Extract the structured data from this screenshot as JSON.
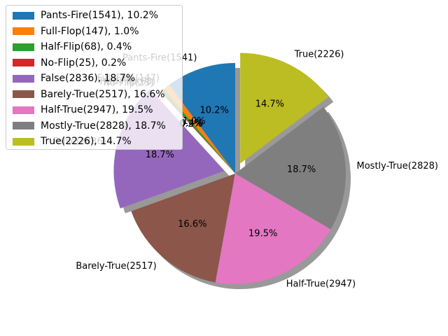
{
  "chart_data": {
    "type": "pie",
    "series": [
      {
        "label": "Pants-Fire(1541)",
        "count": 1541,
        "pct_label": "10.2%",
        "legend": "Pants-Fire(1541), 10.2%",
        "color": "#1f77b4",
        "exploded": false
      },
      {
        "label": "Full-Flop(147)",
        "count": 147,
        "pct_label": "1.0%",
        "legend": "Full-Flop(147), 1.0%",
        "color": "#ff7f0e",
        "exploded": false
      },
      {
        "label": "Half-Flip(68)",
        "count": 68,
        "pct_label": "0.4%",
        "legend": "Half-Flip(68), 0.4%",
        "color": "#2ca02c",
        "exploded": false
      },
      {
        "label": "No-Flip(25)",
        "count": 25,
        "pct_label": "0.2%",
        "legend": "No-Flip(25), 0.2%",
        "color": "#d62728",
        "exploded": false
      },
      {
        "label": "False(2836)",
        "count": 2836,
        "pct_label": "18.7%",
        "legend": "False(2836), 18.7%",
        "color": "#9467bd",
        "exploded": true
      },
      {
        "label": "Barely-True(2517)",
        "count": 2517,
        "pct_label": "16.6%",
        "legend": "Barely-True(2517), 16.6%",
        "color": "#8c564b",
        "exploded": false
      },
      {
        "label": "Half-True(2947)",
        "count": 2947,
        "pct_label": "19.5%",
        "legend": "Half-True(2947), 19.5%",
        "color": "#e377c2",
        "exploded": false
      },
      {
        "label": "Mostly-True(2828)",
        "count": 2828,
        "pct_label": "18.7%",
        "legend": "Mostly-True(2828), 18.7%",
        "color": "#7f7f7f",
        "exploded": false
      },
      {
        "label": "True(2226)",
        "count": 2226,
        "pct_label": "14.7%",
        "legend": "True(2226), 14.7%",
        "color": "#bcbd22",
        "exploded": true
      }
    ],
    "start_angle_deg": 90,
    "direction": "counterclockwise",
    "shadow": true,
    "legend_position": "upper-left"
  }
}
